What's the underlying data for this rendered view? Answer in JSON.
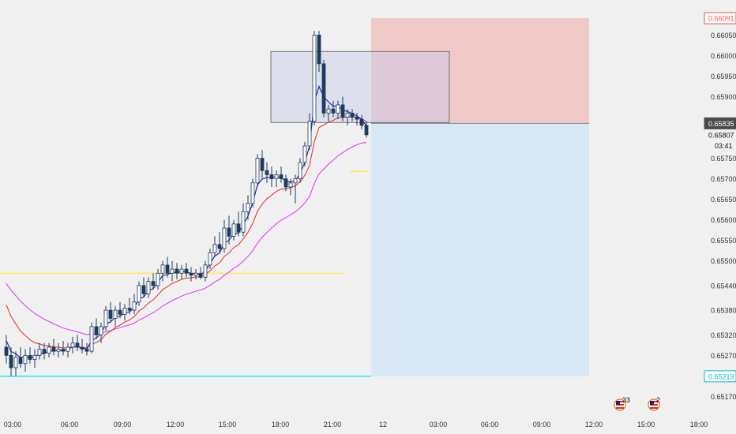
{
  "chart_data": {
    "type": "candlestick",
    "title": "",
    "xlabel": "",
    "ylabel": "",
    "ylim": [
      0.6514,
      0.6612
    ],
    "y_ticks": [
      "0.65170",
      "0.65219",
      "0.65270",
      "0.65320",
      "0.65380",
      "0.65440",
      "0.65500",
      "0.65550",
      "0.65600",
      "0.65650",
      "0.65700",
      "0.65750",
      "0.65807",
      "0.65835",
      "0.65900",
      "0.65950",
      "0.66000",
      "0.66050",
      "0.66091"
    ],
    "time_labels": [
      "03:00",
      "06:00",
      "09:00",
      "12:00",
      "15:00",
      "18:00",
      "21:00",
      "12",
      "03:00",
      "06:00",
      "09:00",
      "12:00",
      "15:00",
      "18:00"
    ],
    "price_tags": {
      "stop": {
        "value": "0.66091",
        "color": "#ef5350"
      },
      "current": {
        "value": "0.65835",
        "color": "#4a4a4a"
      },
      "last": {
        "value": "0.65807",
        "countdown": "03:41"
      },
      "target": {
        "value": "0.65219",
        "color": "#00bcd4"
      }
    },
    "horizontal_lines": [
      {
        "price": 0.6547,
        "color": "#ffeb3b"
      },
      {
        "price": 0.65219,
        "color": "#00e5ff"
      }
    ],
    "position": {
      "entry": 0.65835,
      "stop": 0.66091,
      "target": 0.65219
    },
    "zone": {
      "top": 0.6601,
      "bottom": 0.65837
    },
    "event_badges": [
      {
        "label": "33",
        "country": "US"
      },
      {
        "label": "2",
        "country": "US"
      }
    ],
    "series_colors": {
      "ema_fast": "#1a1aa6",
      "ema_mid": "#e53935",
      "ema_slow": "#e040fb",
      "candle_up": "#ffffff",
      "candle_down": "#1f3a5f"
    },
    "candles": [
      [
        0.6529,
        0.6532,
        0.6525,
        0.6527
      ],
      [
        0.6527,
        0.6529,
        0.6522,
        0.6524
      ],
      [
        0.6524,
        0.6528,
        0.6522,
        0.65265
      ],
      [
        0.65265,
        0.6529,
        0.6524,
        0.6525
      ],
      [
        0.6525,
        0.65285,
        0.6523,
        0.6527
      ],
      [
        0.6527,
        0.6529,
        0.6525,
        0.6526
      ],
      [
        0.6526,
        0.65285,
        0.6524,
        0.6527
      ],
      [
        0.6527,
        0.653,
        0.6526,
        0.65285
      ],
      [
        0.65285,
        0.653,
        0.6526,
        0.65275
      ],
      [
        0.65275,
        0.653,
        0.65265,
        0.6529
      ],
      [
        0.6529,
        0.6531,
        0.6527,
        0.6528
      ],
      [
        0.6528,
        0.653,
        0.65265,
        0.65285
      ],
      [
        0.65285,
        0.65305,
        0.6527,
        0.6528
      ],
      [
        0.6528,
        0.653,
        0.65265,
        0.6529
      ],
      [
        0.6529,
        0.65315,
        0.65275,
        0.653
      ],
      [
        0.653,
        0.6532,
        0.6528,
        0.6529
      ],
      [
        0.6529,
        0.6531,
        0.65275,
        0.65285
      ],
      [
        0.65285,
        0.653,
        0.6527,
        0.6528
      ],
      [
        0.6528,
        0.6535,
        0.65275,
        0.6534
      ],
      [
        0.6534,
        0.6536,
        0.6531,
        0.6532
      ],
      [
        0.6532,
        0.6535,
        0.653,
        0.6534
      ],
      [
        0.6534,
        0.6539,
        0.6533,
        0.6538
      ],
      [
        0.6538,
        0.654,
        0.6535,
        0.6536
      ],
      [
        0.6536,
        0.6539,
        0.6534,
        0.6538
      ],
      [
        0.6538,
        0.654,
        0.6536,
        0.6537
      ],
      [
        0.6537,
        0.65395,
        0.65355,
        0.65385
      ],
      [
        0.65385,
        0.6541,
        0.6537,
        0.6538
      ],
      [
        0.6538,
        0.6542,
        0.6537,
        0.654
      ],
      [
        0.654,
        0.6545,
        0.6539,
        0.6544
      ],
      [
        0.6544,
        0.6546,
        0.6541,
        0.6542
      ],
      [
        0.6542,
        0.6546,
        0.6541,
        0.6545
      ],
      [
        0.6545,
        0.6547,
        0.6543,
        0.6544
      ],
      [
        0.6544,
        0.6548,
        0.6543,
        0.6547
      ],
      [
        0.6547,
        0.655,
        0.6545,
        0.6549
      ],
      [
        0.6549,
        0.6551,
        0.6546,
        0.6547
      ],
      [
        0.6547,
        0.655,
        0.6545,
        0.6548
      ],
      [
        0.6548,
        0.65495,
        0.65455,
        0.6547
      ],
      [
        0.6547,
        0.6549,
        0.65455,
        0.6548
      ],
      [
        0.6548,
        0.65495,
        0.6546,
        0.6547
      ],
      [
        0.6547,
        0.65485,
        0.6545,
        0.65465
      ],
      [
        0.65465,
        0.6548,
        0.65455,
        0.6547
      ],
      [
        0.6547,
        0.65485,
        0.65455,
        0.6546
      ],
      [
        0.6546,
        0.655,
        0.6545,
        0.6549
      ],
      [
        0.6549,
        0.6553,
        0.6548,
        0.6552
      ],
      [
        0.6552,
        0.6556,
        0.6551,
        0.6554
      ],
      [
        0.6554,
        0.6557,
        0.6552,
        0.6553
      ],
      [
        0.6553,
        0.656,
        0.6552,
        0.6558
      ],
      [
        0.6558,
        0.6561,
        0.6554,
        0.6556
      ],
      [
        0.6556,
        0.656,
        0.6555,
        0.6559
      ],
      [
        0.6559,
        0.6562,
        0.6556,
        0.6557
      ],
      [
        0.6557,
        0.6564,
        0.6556,
        0.6562
      ],
      [
        0.6562,
        0.6566,
        0.656,
        0.6564
      ],
      [
        0.6564,
        0.657,
        0.6563,
        0.6569
      ],
      [
        0.6569,
        0.6576,
        0.6568,
        0.6575
      ],
      [
        0.6575,
        0.6577,
        0.657,
        0.6572
      ],
      [
        0.6572,
        0.6574,
        0.6569,
        0.6571
      ],
      [
        0.6571,
        0.6573,
        0.6568,
        0.657
      ],
      [
        0.657,
        0.6572,
        0.6568,
        0.6571
      ],
      [
        0.6571,
        0.6573,
        0.6569,
        0.657
      ],
      [
        0.657,
        0.6571,
        0.6567,
        0.6568
      ],
      [
        0.6568,
        0.657,
        0.6566,
        0.6569
      ],
      [
        0.6569,
        0.6571,
        0.6564,
        0.657
      ],
      [
        0.657,
        0.6575,
        0.6569,
        0.6574
      ],
      [
        0.6574,
        0.6579,
        0.6573,
        0.6578
      ],
      [
        0.6578,
        0.6586,
        0.6577,
        0.6584
      ],
      [
        0.6584,
        0.6606,
        0.6583,
        0.6605
      ],
      [
        0.6605,
        0.6606,
        0.6596,
        0.6598
      ],
      [
        0.6598,
        0.6599,
        0.6585,
        0.6586
      ],
      [
        0.6586,
        0.6588,
        0.6584,
        0.6587
      ],
      [
        0.6587,
        0.6589,
        0.6585,
        0.6586
      ],
      [
        0.6586,
        0.6589,
        0.65845,
        0.6588
      ],
      [
        0.6588,
        0.659,
        0.6584,
        0.6585
      ],
      [
        0.6585,
        0.6587,
        0.6583,
        0.6586
      ],
      [
        0.6586,
        0.6587,
        0.6584,
        0.6585
      ],
      [
        0.6585,
        0.6586,
        0.6583,
        0.65845
      ],
      [
        0.65845,
        0.65855,
        0.6582,
        0.6583
      ],
      [
        0.6583,
        0.6584,
        0.658,
        0.65807
      ]
    ]
  }
}
